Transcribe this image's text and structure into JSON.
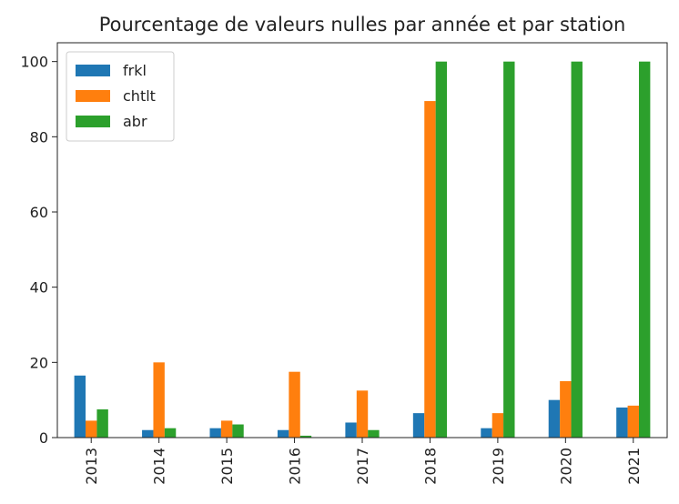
{
  "chart_data": {
    "type": "bar",
    "title": "Pourcentage de valeurs nulles par année et par station",
    "xlabel": "",
    "ylabel": "",
    "categories": [
      "2013",
      "2014",
      "2015",
      "2016",
      "2017",
      "2018",
      "2019",
      "2020",
      "2021"
    ],
    "series": [
      {
        "name": "frkl",
        "color": "#1f77b4",
        "values": [
          16.5,
          2.0,
          2.5,
          2.0,
          4.0,
          6.5,
          2.5,
          10.0,
          8.0
        ]
      },
      {
        "name": "chtlt",
        "color": "#ff7f0e",
        "values": [
          4.5,
          20.0,
          4.5,
          17.5,
          12.5,
          89.5,
          6.5,
          15.0,
          8.5
        ]
      },
      {
        "name": "abr",
        "color": "#2ca02c",
        "values": [
          7.5,
          2.5,
          3.5,
          0.5,
          2.0,
          100.0,
          100.0,
          100.0,
          100.0
        ]
      }
    ],
    "ylim": [
      0,
      105
    ],
    "yticks": [
      0,
      20,
      40,
      60,
      80,
      100
    ],
    "grid": false,
    "legend_position": "top-left"
  }
}
